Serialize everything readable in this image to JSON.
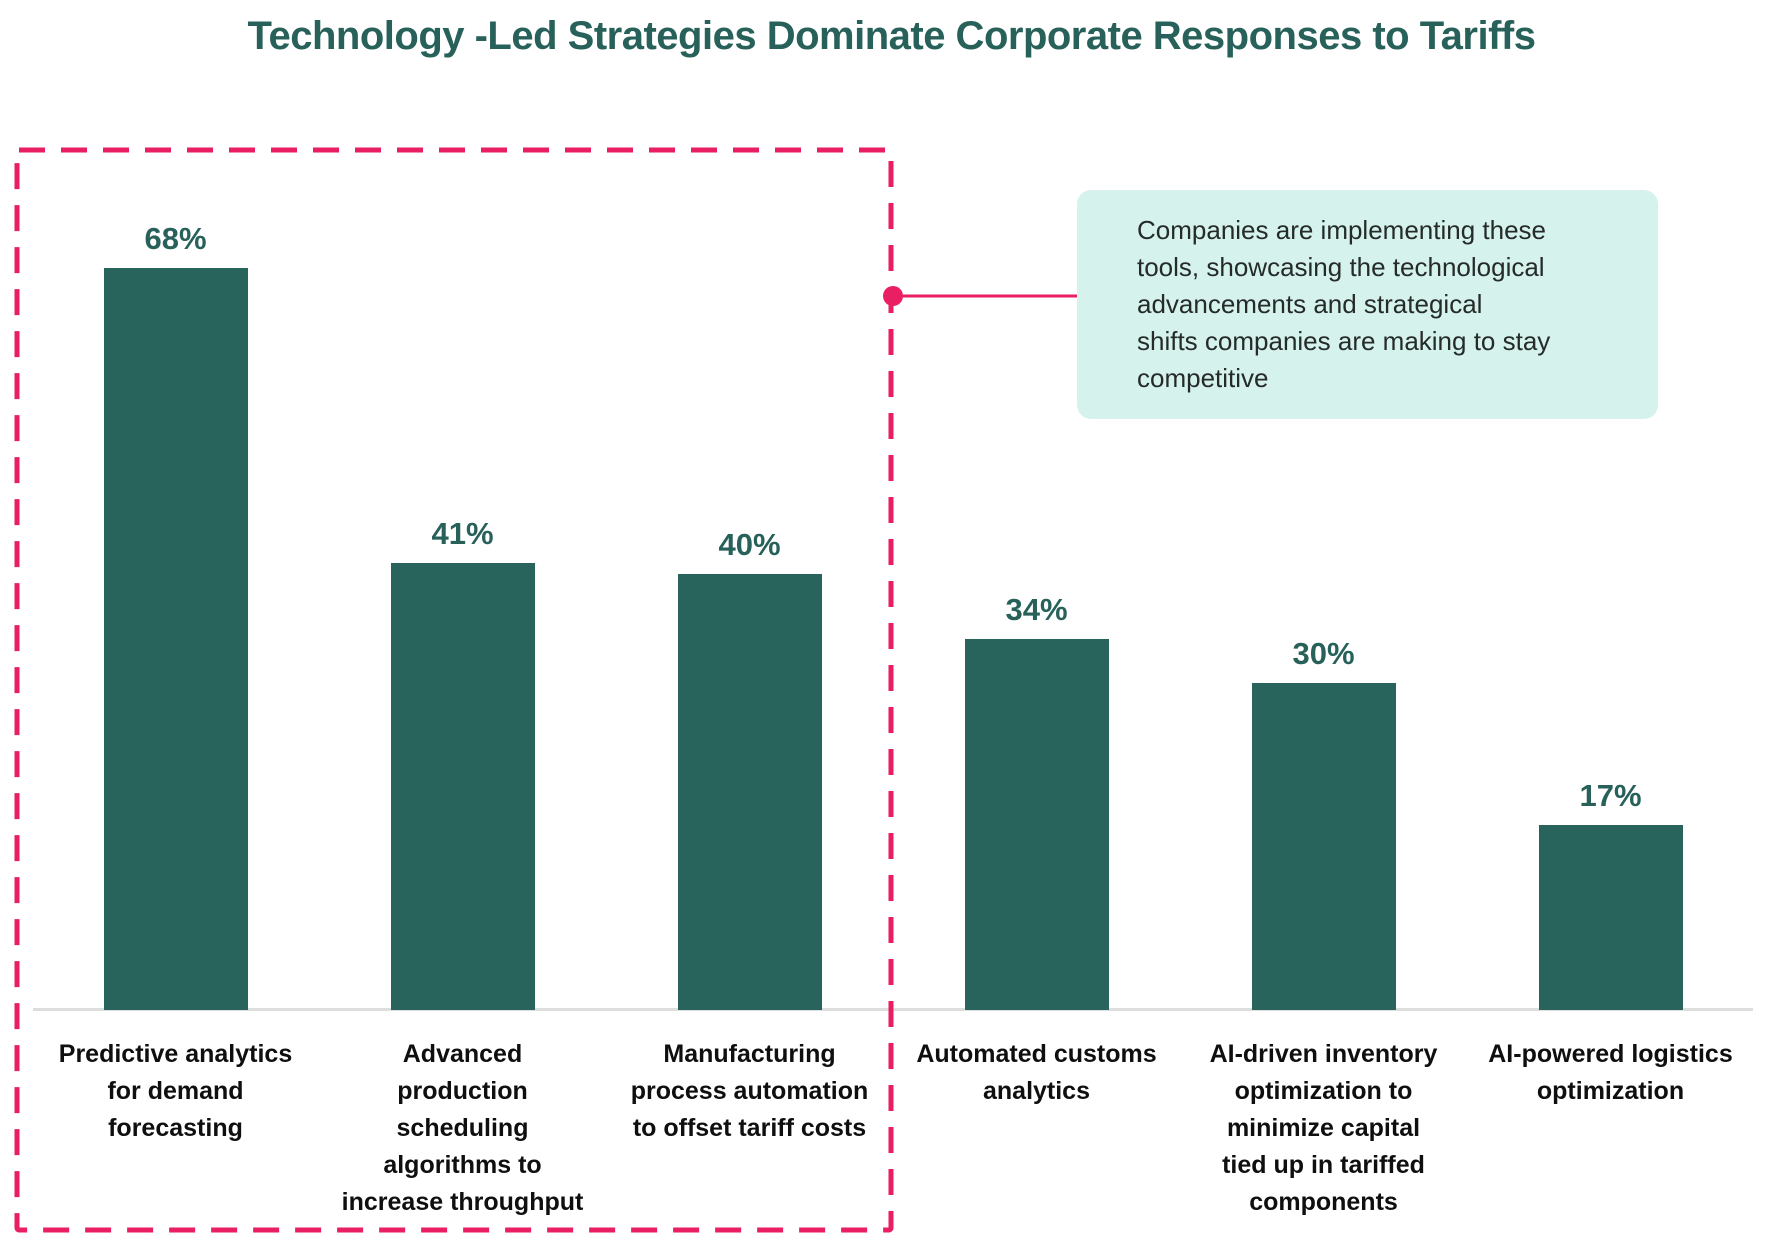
{
  "chart_data": {
    "type": "bar",
    "title": "Technology -Led Strategies Dominate Corporate Responses to Tariffs",
    "categories": [
      "Predictive analytics for demand forecasting",
      "Advanced production scheduling algorithms to increase throughput",
      "Manufacturing process automation to offset tariff costs",
      "Automated customs analytics",
      "AI-driven inventory optimization to minimize capital tied up in tariffed components",
      "AI-powered logistics optimization"
    ],
    "categories_wrapped": [
      "Predictive analytics\nfor demand\nforecasting",
      "Advanced\nproduction\nscheduling\nalgorithms to\nincrease throughput",
      "Manufacturing\nprocess automation\nto offset tariff costs",
      "Automated customs\nanalytics",
      "AI-driven inventory\noptimization to\nminimize capital\ntied up in tariffed\ncomponents",
      "AI-powered logistics\noptimization"
    ],
    "values": [
      68,
      41,
      40,
      34,
      30,
      17
    ],
    "value_labels": [
      "68%",
      "41%",
      "40%",
      "34%",
      "30%",
      "17%"
    ],
    "unit": "%",
    "ylim": [
      0,
      75
    ],
    "grid": false,
    "legend": false,
    "highlighted_categories": [
      "Predictive analytics for demand forecasting",
      "Advanced production scheduling algorithms to increase throughput",
      "Manufacturing process automation to offset tariff costs"
    ]
  },
  "callout": {
    "text": "Companies are implementing these\ntools, showcasing the technological\nadvancements and strategical\nshifts companies are making to stay\ncompetitive"
  },
  "colors": {
    "bar": "#28645c",
    "title": "#27615a",
    "value_label": "#27615a",
    "category_label": "#0f0f0f",
    "accent_pink": "#e91e63",
    "callout_bg": "#d6f2ed",
    "callout_text": "#242b29",
    "axis_line": "#dddddd"
  }
}
